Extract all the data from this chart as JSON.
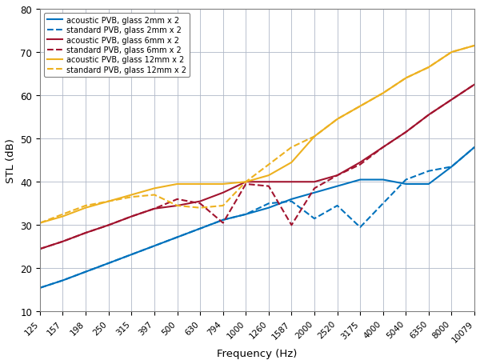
{
  "freq_ticks": [
    125,
    157,
    198,
    250,
    315,
    397,
    500,
    630,
    794,
    1000,
    1260,
    1587,
    2000,
    2520,
    3175,
    4000,
    5040,
    6350,
    8000,
    10079
  ],
  "ylim": [
    10,
    80
  ],
  "yticks": [
    10,
    20,
    30,
    40,
    50,
    60,
    70,
    80
  ],
  "ylabel": "STL (dB)",
  "xlabel": "Frequency (Hz)",
  "grid_color": "#b0b8c8",
  "background_color": "#ffffff",
  "figsize": [
    6.0,
    4.56
  ],
  "dpi": 100,
  "series": [
    {
      "label": "acoustic PVB, glass 2mm x 2",
      "color": "#0072BD",
      "linestyle": "solid",
      "linewidth": 1.5,
      "freq": [
        125,
        157,
        198,
        250,
        315,
        397,
        500,
        630,
        794,
        1000,
        1260,
        1587,
        2000,
        2520,
        3175,
        4000,
        5040,
        6350,
        8000,
        10079
      ],
      "stl": [
        15.5,
        17.2,
        19.2,
        21.2,
        23.2,
        25.2,
        27.2,
        29.2,
        31.2,
        32.5,
        34.0,
        36.0,
        37.5,
        39.0,
        40.5,
        40.5,
        39.5,
        39.5,
        43.5,
        48.0
      ]
    },
    {
      "label": "standard PVB, glass 2mm x 2",
      "color": "#0072BD",
      "linestyle": "dashed",
      "linewidth": 1.5,
      "freq": [
        125,
        157,
        198,
        250,
        315,
        397,
        500,
        630,
        794,
        1000,
        1260,
        1587,
        2000,
        2520,
        3175,
        4000,
        5040,
        6350,
        8000,
        10079
      ],
      "stl": [
        15.5,
        17.2,
        19.2,
        21.2,
        23.2,
        25.2,
        27.2,
        29.2,
        31.2,
        32.5,
        35.0,
        35.5,
        31.5,
        34.5,
        29.5,
        35.0,
        40.5,
        42.5,
        43.5,
        48.0
      ]
    },
    {
      "label": "acoustic PVB, glass 6mm x 2",
      "color": "#A2142F",
      "linestyle": "solid",
      "linewidth": 1.5,
      "freq": [
        125,
        157,
        198,
        250,
        315,
        397,
        500,
        630,
        794,
        1000,
        1260,
        1587,
        2000,
        2520,
        3175,
        4000,
        5040,
        6350,
        8000,
        10079
      ],
      "stl": [
        24.5,
        26.2,
        28.2,
        30.0,
        32.0,
        33.8,
        34.5,
        35.5,
        37.5,
        40.0,
        40.0,
        40.0,
        40.0,
        41.5,
        44.5,
        48.0,
        51.5,
        55.5,
        59.0,
        62.5
      ]
    },
    {
      "label": "standard PVB, glass 6mm x 2",
      "color": "#A2142F",
      "linestyle": "dashed",
      "linewidth": 1.5,
      "freq": [
        125,
        157,
        198,
        250,
        315,
        397,
        500,
        630,
        794,
        1000,
        1260,
        1587,
        2000,
        2520,
        3175,
        4000,
        5040,
        6350,
        8000,
        10079
      ],
      "stl": [
        24.5,
        26.2,
        28.2,
        30.0,
        32.0,
        33.8,
        36.0,
        35.0,
        30.5,
        39.5,
        39.0,
        30.0,
        38.5,
        41.5,
        44.0,
        48.0,
        51.5,
        55.5,
        59.0,
        62.5
      ]
    },
    {
      "label": "acoustic PVB, glass 12mm x 2",
      "color": "#EDB120",
      "linestyle": "solid",
      "linewidth": 1.5,
      "freq": [
        125,
        157,
        198,
        250,
        315,
        397,
        500,
        630,
        794,
        1000,
        1260,
        1587,
        2000,
        2520,
        3175,
        4000,
        5040,
        6350,
        8000,
        10079
      ],
      "stl": [
        30.5,
        32.0,
        34.0,
        35.5,
        37.0,
        38.5,
        39.5,
        39.5,
        39.5,
        40.0,
        41.5,
        44.5,
        50.5,
        54.5,
        57.5,
        60.5,
        64.0,
        66.5,
        70.0,
        71.5
      ]
    },
    {
      "label": "standard PVB, glass 12mm x 2",
      "color": "#EDB120",
      "linestyle": "dashed",
      "linewidth": 1.5,
      "freq": [
        125,
        157,
        198,
        250,
        315,
        397,
        500,
        630,
        794,
        1000,
        1260,
        1587,
        2000,
        2520,
        3175,
        4000,
        5040,
        6350,
        8000,
        10079
      ],
      "stl": [
        30.5,
        32.5,
        34.5,
        35.5,
        36.5,
        37.0,
        34.5,
        34.0,
        34.5,
        40.0,
        44.0,
        48.0,
        50.5,
        54.5,
        57.5,
        60.5,
        64.0,
        66.5,
        70.0,
        71.5
      ]
    }
  ]
}
